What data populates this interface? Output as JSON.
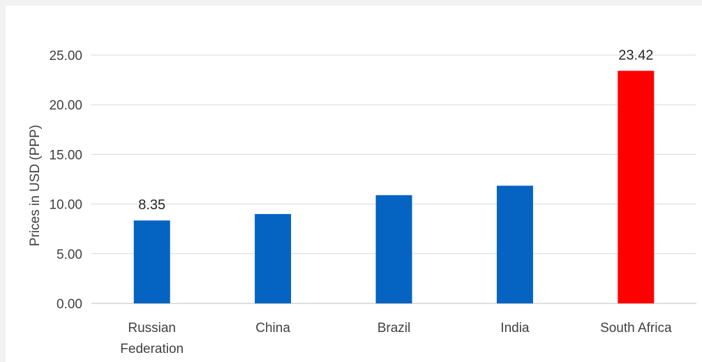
{
  "chart_data": {
    "type": "bar",
    "title": "",
    "xlabel": "",
    "ylabel": "Prices in USD (PPP)",
    "ylim": [
      0,
      25
    ],
    "yticks": [
      "0.00",
      "5.00",
      "10.00",
      "15.00",
      "20.00",
      "25.00"
    ],
    "categories": [
      [
        "Russian",
        "Federation"
      ],
      [
        "China"
      ],
      [
        "Brazil"
      ],
      [
        "India"
      ],
      [
        "South Africa"
      ]
    ],
    "values": [
      8.35,
      9.0,
      10.9,
      11.85,
      23.42
    ],
    "data_labels": [
      "8.35",
      null,
      null,
      null,
      "23.42"
    ],
    "colors": [
      "#0563c1",
      "#0563c1",
      "#0563c1",
      "#0563c1",
      "#ff0000"
    ],
    "grid": true,
    "legend": "none"
  }
}
